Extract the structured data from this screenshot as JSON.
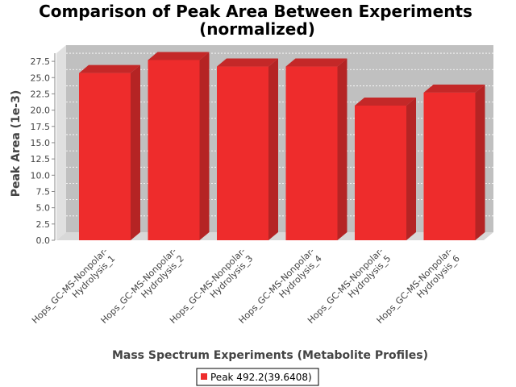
{
  "chart_data": {
    "type": "bar",
    "title": "Comparison of Peak Area Between Experiments",
    "subtitle": "(normalized)",
    "xlabel": "Mass Spectrum Experiments (Metabolite Profiles)",
    "ylabel": "Peak Area (1e-3)",
    "categories": [
      [
        "Hops_GC-MS-Nonpolar-",
        "Hydrolysis_1"
      ],
      [
        "Hops_GC-MS-Nonpolar-",
        "Hydrolysis_2"
      ],
      [
        "Hops_GC-MS-Nonpolar-",
        "Hydrolysis_3"
      ],
      [
        "Hops_GC-MS-Nonpolar-",
        "Hydrolysis_4"
      ],
      [
        "Hops_GC-MS-Nonpolar-",
        "Hydrolysis_5"
      ],
      [
        "Hops_GC-MS-Nonpolar-",
        "Hydrolysis_6"
      ]
    ],
    "series": [
      {
        "name": "Peak 492.2(39.6408)",
        "values": [
          25.7,
          27.7,
          26.7,
          26.7,
          20.7,
          22.7
        ],
        "color": "#ee2c2c"
      }
    ],
    "ylim": [
      0,
      28.75
    ],
    "yticks": [
      "0.0",
      "2.5",
      "5.0",
      "7.5",
      "10.0",
      "12.5",
      "15.0",
      "17.5",
      "20.0",
      "22.5",
      "25.0",
      "27.5"
    ],
    "grid": true,
    "legend_position": "bottom",
    "plot_background": "#c0c0c0"
  }
}
